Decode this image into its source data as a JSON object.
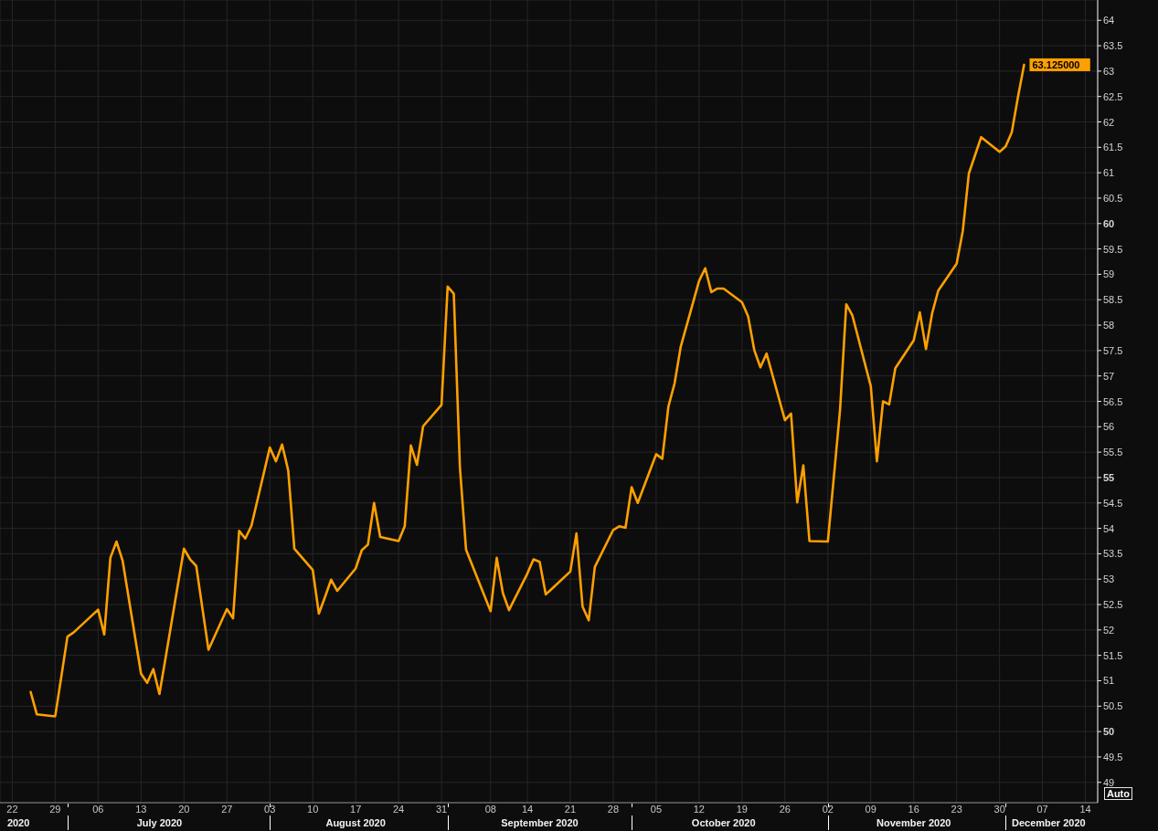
{
  "chart_data": {
    "type": "line",
    "x": [
      "2020-06-25",
      "2020-06-26",
      "2020-06-29",
      "2020-06-30",
      "2020-07-01",
      "2020-07-02",
      "2020-07-06",
      "2020-07-07",
      "2020-07-08",
      "2020-07-09",
      "2020-07-10",
      "2020-07-13",
      "2020-07-14",
      "2020-07-15",
      "2020-07-16",
      "2020-07-17",
      "2020-07-20",
      "2020-07-21",
      "2020-07-22",
      "2020-07-23",
      "2020-07-24",
      "2020-07-27",
      "2020-07-28",
      "2020-07-29",
      "2020-07-30",
      "2020-07-31",
      "2020-08-03",
      "2020-08-04",
      "2020-08-05",
      "2020-08-06",
      "2020-08-07",
      "2020-08-10",
      "2020-08-11",
      "2020-08-12",
      "2020-08-13",
      "2020-08-14",
      "2020-08-17",
      "2020-08-18",
      "2020-08-19",
      "2020-08-20",
      "2020-08-21",
      "2020-08-24",
      "2020-08-25",
      "2020-08-26",
      "2020-08-27",
      "2020-08-28",
      "2020-08-31",
      "2020-09-01",
      "2020-09-02",
      "2020-09-03",
      "2020-09-04",
      "2020-09-08",
      "2020-09-09",
      "2020-09-10",
      "2020-09-11",
      "2020-09-14",
      "2020-09-15",
      "2020-09-16",
      "2020-09-17",
      "2020-09-18",
      "2020-09-21",
      "2020-09-22",
      "2020-09-23",
      "2020-09-24",
      "2020-09-25",
      "2020-09-28",
      "2020-09-29",
      "2020-09-30",
      "2020-10-01",
      "2020-10-02",
      "2020-10-05",
      "2020-10-06",
      "2020-10-07",
      "2020-10-08",
      "2020-10-09",
      "2020-10-12",
      "2020-10-13",
      "2020-10-14",
      "2020-10-15",
      "2020-10-16",
      "2020-10-19",
      "2020-10-20",
      "2020-10-21",
      "2020-10-22",
      "2020-10-23",
      "2020-10-26",
      "2020-10-27",
      "2020-10-28",
      "2020-10-29",
      "2020-10-30",
      "2020-11-02",
      "2020-11-03",
      "2020-11-04",
      "2020-11-05",
      "2020-11-06",
      "2020-11-09",
      "2020-11-10",
      "2020-11-11",
      "2020-11-12",
      "2020-11-13",
      "2020-11-16",
      "2020-11-17",
      "2020-11-18",
      "2020-11-19",
      "2020-11-20",
      "2020-11-23",
      "2020-11-24",
      "2020-11-25",
      "2020-11-27",
      "2020-11-30",
      "2020-12-01",
      "2020-12-02",
      "2020-12-03",
      "2020-12-04"
    ],
    "values": [
      50.78,
      50.34,
      50.3,
      51.08,
      51.87,
      51.95,
      52.4,
      51.91,
      53.42,
      53.74,
      53.36,
      51.14,
      50.96,
      51.23,
      50.74,
      51.45,
      53.6,
      53.39,
      53.26,
      52.43,
      51.61,
      52.41,
      52.23,
      53.95,
      53.8,
      54.05,
      55.59,
      55.32,
      55.65,
      55.14,
      53.6,
      53.18,
      52.32,
      52.65,
      52.99,
      52.77,
      53.21,
      53.57,
      53.68,
      54.5,
      53.83,
      53.75,
      54.04,
      55.63,
      55.25,
      56.01,
      56.43,
      58.76,
      58.62,
      55.2,
      53.58,
      52.37,
      53.42,
      52.73,
      52.39,
      53.11,
      53.39,
      53.34,
      52.7,
      52.81,
      53.15,
      53.9,
      52.46,
      52.19,
      53.24,
      53.97,
      54.04,
      54.01,
      54.81,
      54.5,
      55.46,
      55.37,
      56.4,
      56.85,
      57.57,
      58.87,
      59.12,
      58.65,
      58.72,
      58.72,
      58.45,
      58.17,
      57.51,
      57.17,
      57.44,
      56.13,
      56.26,
      54.51,
      55.24,
      53.75,
      53.74,
      55.04,
      56.35,
      58.41,
      58.19,
      56.8,
      55.32,
      56.5,
      56.44,
      57.15,
      57.7,
      58.25,
      57.53,
      58.23,
      58.68,
      59.21,
      59.85,
      60.99,
      61.7,
      61.41,
      61.52,
      61.8,
      62.49,
      63.125
    ],
    "value_labels": [
      null,
      null,
      null,
      null,
      null,
      null,
      null,
      null,
      null,
      null,
      null,
      null,
      null,
      null,
      null,
      null,
      null,
      null,
      null,
      null,
      null,
      null,
      null,
      null,
      null,
      null,
      null,
      null,
      null,
      null,
      null,
      null,
      null,
      null,
      null,
      null,
      null,
      null,
      null,
      null,
      null,
      null,
      null,
      null,
      null,
      null,
      null,
      null,
      null,
      null,
      null,
      null,
      null,
      null,
      null,
      null,
      null,
      null,
      null,
      null,
      null,
      null,
      null,
      null,
      null,
      null,
      null,
      null,
      null,
      null,
      null,
      null,
      null,
      null,
      null,
      null,
      null,
      null,
      null,
      null,
      null,
      null,
      null,
      null,
      null,
      null,
      null,
      null,
      null,
      null,
      null,
      null,
      null,
      null,
      null,
      null,
      null,
      null,
      null,
      null,
      null,
      null,
      null,
      null,
      null,
      null,
      null,
      null,
      null,
      null,
      null,
      null,
      null,
      "63.125000"
    ],
    "color": "#ffa000",
    "xlim": [
      "2020-06-20",
      "2020-12-16"
    ],
    "xticks": [
      {
        "value": "2020-06-22",
        "label": "22"
      },
      {
        "value": "2020-06-29",
        "label": "29"
      },
      {
        "value": "2020-07-06",
        "label": "06"
      },
      {
        "value": "2020-07-13",
        "label": "13"
      },
      {
        "value": "2020-07-20",
        "label": "20"
      },
      {
        "value": "2020-07-27",
        "label": "27"
      },
      {
        "value": "2020-08-03",
        "label": "03"
      },
      {
        "value": "2020-08-10",
        "label": "10"
      },
      {
        "value": "2020-08-17",
        "label": "17"
      },
      {
        "value": "2020-08-24",
        "label": "24"
      },
      {
        "value": "2020-08-31",
        "label": "31"
      },
      {
        "value": "2020-09-08",
        "label": "08"
      },
      {
        "value": "2020-09-14",
        "label": "14"
      },
      {
        "value": "2020-09-21",
        "label": "21"
      },
      {
        "value": "2020-09-28",
        "label": "28"
      },
      {
        "value": "2020-10-05",
        "label": "05"
      },
      {
        "value": "2020-10-12",
        "label": "12"
      },
      {
        "value": "2020-10-19",
        "label": "19"
      },
      {
        "value": "2020-10-26",
        "label": "26"
      },
      {
        "value": "2020-11-02",
        "label": "02"
      },
      {
        "value": "2020-11-09",
        "label": "09"
      },
      {
        "value": "2020-11-16",
        "label": "16"
      },
      {
        "value": "2020-11-23",
        "label": "23"
      },
      {
        "value": "2020-11-30",
        "label": "30"
      },
      {
        "value": "2020-12-07",
        "label": "07"
      },
      {
        "value": "2020-12-14",
        "label": "14"
      }
    ],
    "x2lim": [
      "2020-06-20",
      "2020-12-16"
    ],
    "x2ticks": [
      {
        "value": "2020-06-23",
        "label": "2020"
      },
      {
        "value": "2020-07-01",
        "label": null
      },
      {
        "value": "2020-07-16",
        "label": "July 2020"
      },
      {
        "value": "2020-08-03",
        "label": null
      },
      {
        "value": "2020-08-17",
        "label": "August 2020"
      },
      {
        "value": "2020-09-01",
        "label": null
      },
      {
        "value": "2020-09-16",
        "label": "September 2020"
      },
      {
        "value": "2020-10-01",
        "label": null
      },
      {
        "value": "2020-10-16",
        "label": "October 2020"
      },
      {
        "value": "2020-11-02",
        "label": null
      },
      {
        "value": "2020-11-16",
        "label": "November 2020"
      },
      {
        "value": "2020-12-01",
        "label": null
      },
      {
        "value": "2020-12-08",
        "label": "December 2020"
      }
    ],
    "ylim": [
      48.6,
      64.4
    ],
    "yticks": [
      49,
      49.5,
      50,
      50.5,
      51,
      51.5,
      52,
      52.5,
      53,
      53.5,
      54,
      54.5,
      55,
      55.5,
      56,
      56.5,
      57,
      57.5,
      58,
      58.5,
      59,
      59.5,
      60,
      60.5,
      61,
      61.5,
      62,
      62.5,
      63,
      63.5,
      64
    ],
    "grid": true,
    "annotations": [
      "Auto"
    ]
  }
}
